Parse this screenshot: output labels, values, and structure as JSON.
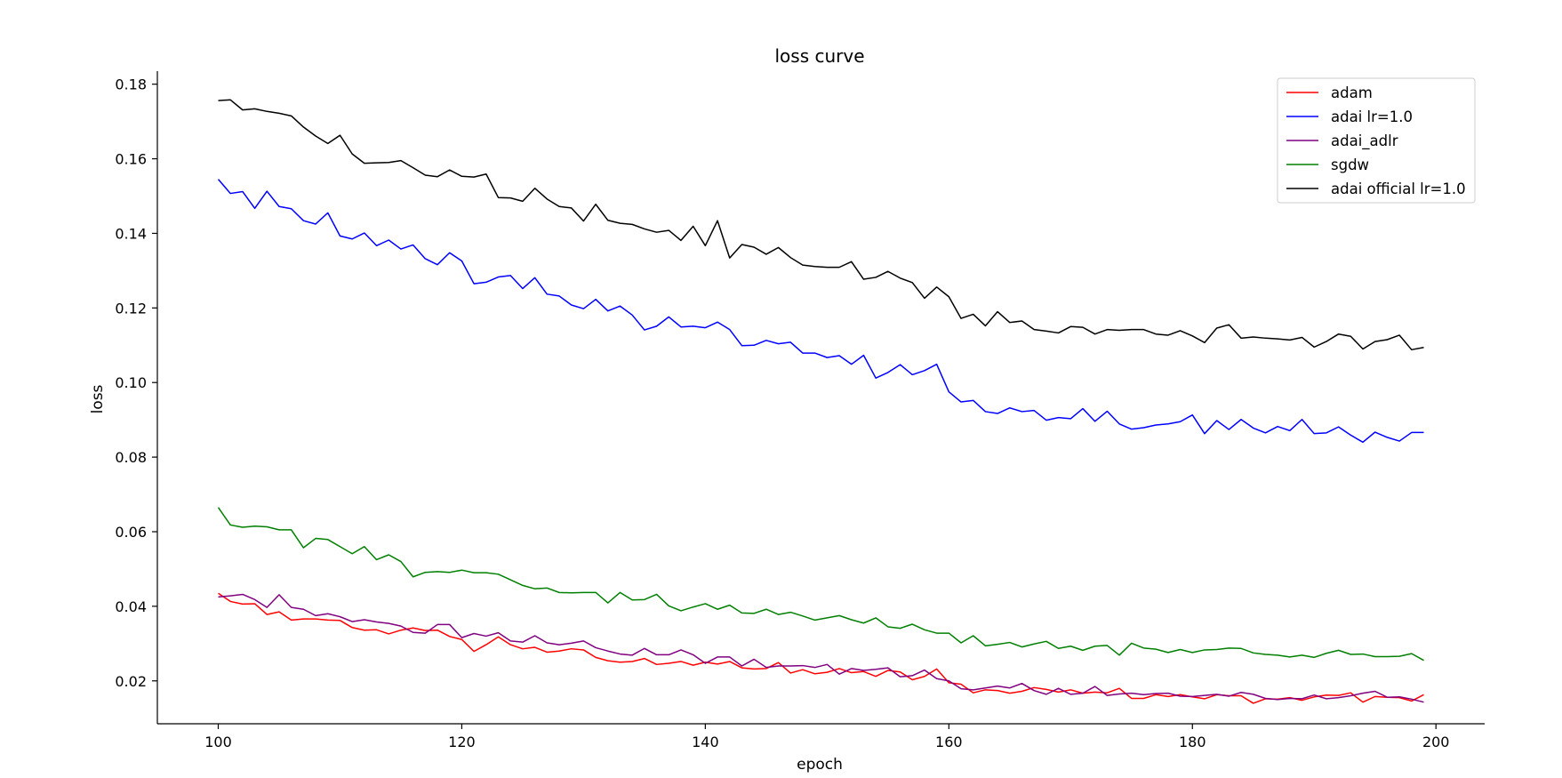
{
  "chart_data": {
    "type": "line",
    "title": "loss curve",
    "xlabel": "epoch",
    "ylabel": "loss",
    "xlim": [
      95,
      204
    ],
    "ylim": [
      0.0085,
      0.1835
    ],
    "xticks": [
      100,
      120,
      140,
      160,
      180,
      200
    ],
    "yticks": [
      0.02,
      0.04,
      0.06,
      0.08,
      0.1,
      0.12,
      0.14,
      0.16,
      0.18
    ],
    "ytick_labels": [
      "0.02",
      "0.04",
      "0.06",
      "0.08",
      "0.10",
      "0.12",
      "0.14",
      "0.16",
      "0.18"
    ],
    "grid": false,
    "legend_position": "top-right",
    "x_start": 100,
    "series": [
      {
        "name": "adam",
        "color": "#ff0000",
        "values": [
          0.0435,
          0.0413,
          0.0406,
          0.0407,
          0.0378,
          0.0385,
          0.0363,
          0.0366,
          0.0366,
          0.0363,
          0.0362,
          0.0343,
          0.0336,
          0.0337,
          0.0326,
          0.0336,
          0.0342,
          0.0335,
          0.0336,
          0.0319,
          0.0311,
          0.0279,
          0.0297,
          0.0318,
          0.0297,
          0.0286,
          0.029,
          0.0277,
          0.028,
          0.0286,
          0.0283,
          0.0263,
          0.0254,
          0.025,
          0.0252,
          0.026,
          0.0244,
          0.0247,
          0.0252,
          0.0242,
          0.025,
          0.0245,
          0.0252,
          0.0235,
          0.0232,
          0.0233,
          0.0249,
          0.0221,
          0.023,
          0.0219,
          0.0223,
          0.0233,
          0.0222,
          0.0225,
          0.0212,
          0.0228,
          0.0224,
          0.0203,
          0.0212,
          0.0232,
          0.0195,
          0.0191,
          0.0168,
          0.0176,
          0.0174,
          0.0167,
          0.0172,
          0.0182,
          0.0177,
          0.017,
          0.0176,
          0.0167,
          0.017,
          0.0168,
          0.018,
          0.0153,
          0.0153,
          0.0163,
          0.0158,
          0.0163,
          0.0157,
          0.0152,
          0.0163,
          0.016,
          0.016,
          0.014,
          0.0152,
          0.0151,
          0.0155,
          0.0148,
          0.0157,
          0.0162,
          0.0161,
          0.0168,
          0.0143,
          0.0158,
          0.0156,
          0.0155,
          0.0146,
          0.0163
        ]
      },
      {
        "name": "adai lr=1.0",
        "color": "#0000ff",
        "values": [
          0.1545,
          0.1507,
          0.1512,
          0.1467,
          0.1513,
          0.1472,
          0.1466,
          0.1434,
          0.1425,
          0.1455,
          0.1393,
          0.1385,
          0.1401,
          0.1367,
          0.1382,
          0.1358,
          0.1369,
          0.1332,
          0.1316,
          0.1348,
          0.1326,
          0.1265,
          0.1269,
          0.1283,
          0.1287,
          0.1252,
          0.1281,
          0.1237,
          0.1232,
          0.1208,
          0.1198,
          0.1223,
          0.1192,
          0.1205,
          0.1181,
          0.1141,
          0.1151,
          0.1176,
          0.1149,
          0.1151,
          0.1147,
          0.1162,
          0.1142,
          0.1099,
          0.11,
          0.1113,
          0.1104,
          0.1108,
          0.1079,
          0.1079,
          0.1067,
          0.1072,
          0.1049,
          0.1073,
          0.1012,
          0.1027,
          0.1048,
          0.1021,
          0.1032,
          0.1049,
          0.0975,
          0.0948,
          0.0952,
          0.0922,
          0.0917,
          0.0932,
          0.0922,
          0.0925,
          0.0899,
          0.0906,
          0.0903,
          0.093,
          0.0896,
          0.0923,
          0.0889,
          0.0875,
          0.0879,
          0.0886,
          0.0889,
          0.0895,
          0.0913,
          0.0863,
          0.0898,
          0.0874,
          0.0901,
          0.0878,
          0.0865,
          0.0882,
          0.0871,
          0.0901,
          0.0863,
          0.0865,
          0.0881,
          0.0859,
          0.084,
          0.0867,
          0.0853,
          0.0843,
          0.0866,
          0.0866
        ]
      },
      {
        "name": "adai_adlr",
        "color": "#800080",
        "values": [
          0.0425,
          0.0428,
          0.0432,
          0.0418,
          0.0397,
          0.0431,
          0.0397,
          0.0392,
          0.0375,
          0.038,
          0.0372,
          0.0359,
          0.0364,
          0.0358,
          0.0354,
          0.0347,
          0.033,
          0.0328,
          0.0351,
          0.0351,
          0.0316,
          0.0327,
          0.032,
          0.0329,
          0.0307,
          0.0304,
          0.0321,
          0.0302,
          0.0297,
          0.0301,
          0.0307,
          0.0289,
          0.028,
          0.0272,
          0.0269,
          0.0287,
          0.027,
          0.027,
          0.0283,
          0.027,
          0.0247,
          0.0264,
          0.0264,
          0.024,
          0.0258,
          0.0236,
          0.024,
          0.024,
          0.0241,
          0.0236,
          0.0244,
          0.0218,
          0.0233,
          0.0228,
          0.0231,
          0.0235,
          0.0211,
          0.0214,
          0.0229,
          0.0206,
          0.02,
          0.0179,
          0.0176,
          0.0181,
          0.0186,
          0.0181,
          0.0193,
          0.0174,
          0.0164,
          0.018,
          0.0164,
          0.0167,
          0.0185,
          0.0161,
          0.0165,
          0.0167,
          0.0163,
          0.0166,
          0.0167,
          0.0159,
          0.0158,
          0.0161,
          0.0164,
          0.0159,
          0.0169,
          0.0164,
          0.0153,
          0.015,
          0.0153,
          0.0152,
          0.0162,
          0.0152,
          0.0155,
          0.016,
          0.0167,
          0.0172,
          0.0156,
          0.0157,
          0.0151,
          0.0143
        ]
      },
      {
        "name": "sgdw",
        "color": "#008000",
        "values": [
          0.0665,
          0.0618,
          0.0612,
          0.0615,
          0.0613,
          0.0605,
          0.0605,
          0.0557,
          0.0582,
          0.0579,
          0.056,
          0.0541,
          0.056,
          0.0525,
          0.0538,
          0.052,
          0.0479,
          0.0491,
          0.0493,
          0.0491,
          0.0497,
          0.049,
          0.049,
          0.0486,
          0.0471,
          0.0456,
          0.0447,
          0.0449,
          0.0437,
          0.0436,
          0.0437,
          0.0437,
          0.0409,
          0.0437,
          0.0417,
          0.0418,
          0.0432,
          0.0401,
          0.0388,
          0.0398,
          0.0407,
          0.0392,
          0.0403,
          0.0382,
          0.0381,
          0.0392,
          0.0378,
          0.0384,
          0.0374,
          0.0363,
          0.0369,
          0.0375,
          0.0364,
          0.0355,
          0.0369,
          0.0345,
          0.0341,
          0.0352,
          0.0337,
          0.0328,
          0.0328,
          0.0302,
          0.0321,
          0.0294,
          0.0298,
          0.0303,
          0.0291,
          0.0299,
          0.0306,
          0.0287,
          0.0293,
          0.0282,
          0.0293,
          0.0295,
          0.0269,
          0.0301,
          0.0288,
          0.0285,
          0.0276,
          0.0284,
          0.0276,
          0.0283,
          0.0284,
          0.0288,
          0.0287,
          0.0275,
          0.0271,
          0.0269,
          0.0264,
          0.0269,
          0.0263,
          0.0274,
          0.0282,
          0.0271,
          0.0272,
          0.0265,
          0.0265,
          0.0266,
          0.0273,
          0.0255
        ]
      },
      {
        "name": "adai official lr=1.0",
        "color": "#000000",
        "values": [
          0.1756,
          0.1758,
          0.1731,
          0.1734,
          0.1727,
          0.1722,
          0.1715,
          0.1685,
          0.1661,
          0.1641,
          0.1663,
          0.1613,
          0.1588,
          0.1589,
          0.159,
          0.1595,
          0.1576,
          0.1556,
          0.1552,
          0.157,
          0.1553,
          0.1551,
          0.1559,
          0.1496,
          0.1495,
          0.1486,
          0.1521,
          0.1492,
          0.1472,
          0.1468,
          0.1433,
          0.1478,
          0.1435,
          0.1427,
          0.1424,
          0.1412,
          0.1403,
          0.1408,
          0.1381,
          0.1419,
          0.1367,
          0.1434,
          0.1334,
          0.137,
          0.1363,
          0.1344,
          0.1362,
          0.1335,
          0.1315,
          0.1311,
          0.1309,
          0.1309,
          0.1324,
          0.1277,
          0.1282,
          0.1298,
          0.128,
          0.1268,
          0.1226,
          0.1256,
          0.123,
          0.1172,
          0.1183,
          0.1152,
          0.119,
          0.1161,
          0.1165,
          0.1142,
          0.1138,
          0.1133,
          0.115,
          0.1148,
          0.113,
          0.1142,
          0.114,
          0.1142,
          0.1142,
          0.113,
          0.1127,
          0.1139,
          0.1125,
          0.1107,
          0.1146,
          0.1155,
          0.1119,
          0.1122,
          0.1119,
          0.1117,
          0.1114,
          0.1121,
          0.1095,
          0.111,
          0.113,
          0.1124,
          0.109,
          0.111,
          0.1115,
          0.1127,
          0.1088,
          0.1094
        ]
      }
    ]
  }
}
